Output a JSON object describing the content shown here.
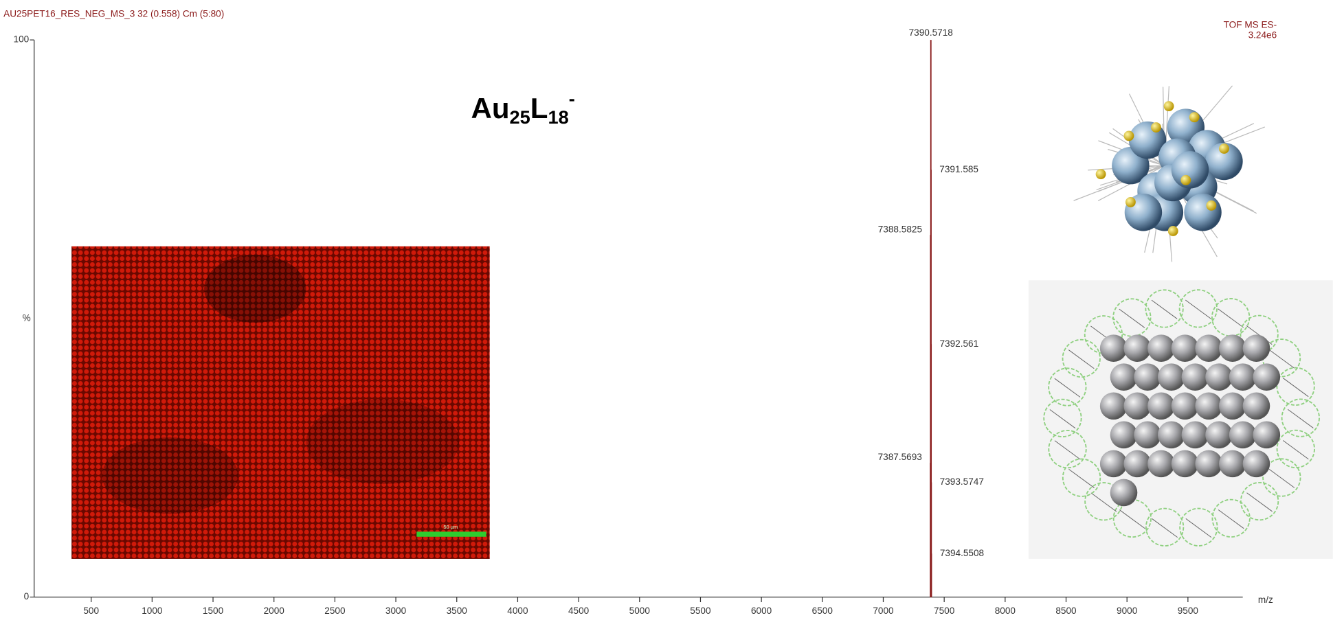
{
  "chart_data": {
    "type": "stick",
    "title": "AU25PET16_RES_NEG_MS_3 32 (0.558) Cm (5:80)",
    "mode": "TOF MS ES-",
    "intensity": "3.24e6",
    "formula": [
      "Au",
      "25",
      "L",
      "18",
      "-"
    ],
    "scale_bar": "50 µm",
    "xlabel": "m/z",
    "ylabel": "%",
    "x": [
      7387.5693,
      7388.5825,
      7390.5718,
      7391.585,
      7392.561,
      7393.5747,
      7394.5508
    ],
    "series": [
      {
        "color": "#8a1c1c",
        "values": [
          24.1,
          65,
          100,
          76.7,
          45.4,
          20.6,
          7.8
        ]
      }
    ],
    "xlim": [
      32,
      9950
    ],
    "xticks": [
      500,
      1000,
      1500,
      2000,
      2500,
      3000,
      3500,
      4000,
      4500,
      5000,
      5500,
      6000,
      6500,
      7000,
      7500,
      8000,
      8500,
      9000,
      9500
    ],
    "ylim": [
      0,
      100
    ],
    "yticks": [
      0,
      100
    ]
  }
}
